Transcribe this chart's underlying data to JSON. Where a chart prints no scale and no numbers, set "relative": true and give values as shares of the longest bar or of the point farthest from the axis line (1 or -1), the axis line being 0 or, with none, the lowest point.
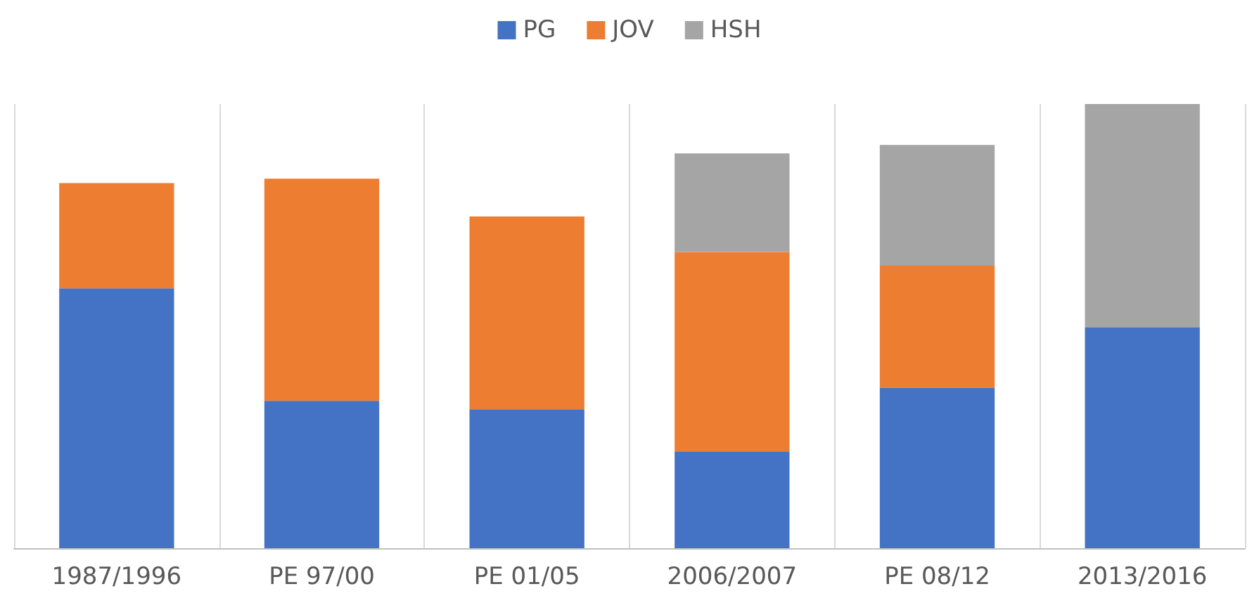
{
  "chart_data": {
    "type": "bar",
    "stacked": true,
    "relative": true,
    "categories": [
      "1987/1996",
      "PE 97/00",
      "PE 01/05",
      "2006/2007",
      "PE 08/12",
      "2013/2016"
    ],
    "series": [
      {
        "name": "PG",
        "color": "#4472c4",
        "values": [
          0.585,
          0.332,
          0.313,
          0.218,
          0.361,
          0.497
        ]
      },
      {
        "name": "JOV",
        "color": "#ed7d31",
        "values": [
          0.237,
          0.5,
          0.434,
          0.449,
          0.275,
          null
        ]
      },
      {
        "name": "HSH",
        "color": "#a5a5a5",
        "values": [
          null,
          null,
          null,
          0.222,
          0.272,
          0.503
        ]
      }
    ],
    "legend": "top",
    "grid": "x"
  }
}
